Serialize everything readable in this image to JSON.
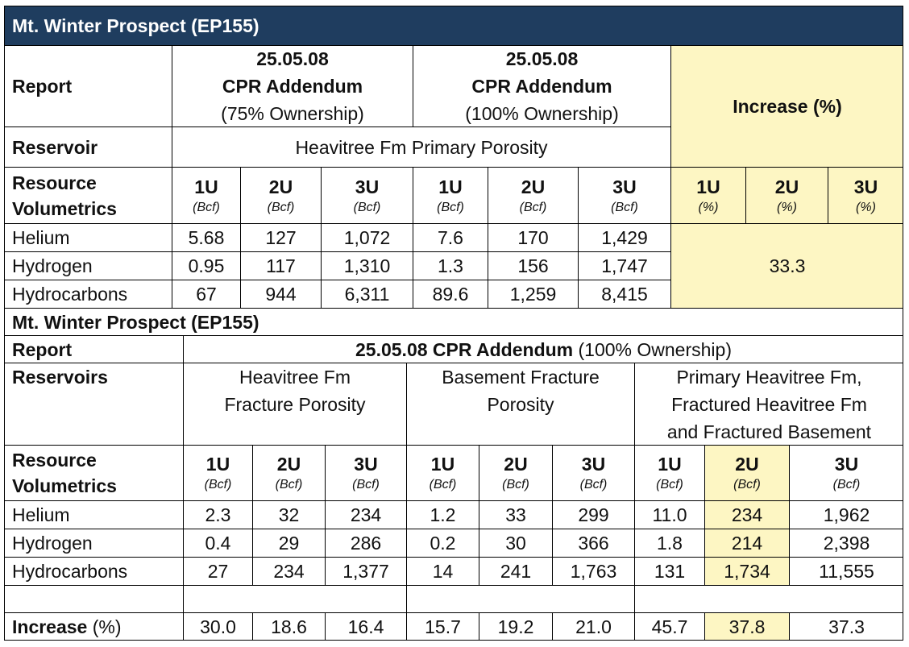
{
  "table1": {
    "title": "Mt. Winter Prospect (EP155)",
    "report_label": "Report",
    "reservoir_label": "Reservoir",
    "resource_label_1": "Resource",
    "resource_label_2": "Volumetrics",
    "group_a": {
      "date": "25.05.08",
      "name": "CPR Addendum",
      "ownership": "(75% Ownership)"
    },
    "group_b": {
      "date": "25.05.08",
      "name": "CPR Addendum",
      "ownership": "(100% Ownership)"
    },
    "reservoir_value": "Heavitree Fm  Primary Porosity",
    "increase_header": "Increase (%)",
    "columns": [
      "1U",
      "2U",
      "3U",
      "1U",
      "2U",
      "3U"
    ],
    "units": [
      "(Bcf)",
      "(Bcf)",
      "(Bcf)",
      "(Bcf)",
      "(Bcf)",
      "(Bcf)"
    ],
    "increase_columns": [
      "1U",
      "2U",
      "3U"
    ],
    "increase_units": [
      "(%)",
      "(%)",
      "(%)"
    ],
    "rows": [
      {
        "name": "Helium",
        "values": [
          "5.68",
          "127",
          "1,072",
          "7.6",
          "170",
          "1,429"
        ]
      },
      {
        "name": "Hydrogen",
        "values": [
          "0.95",
          "117",
          "1,310",
          "1.3",
          "156",
          "1,747"
        ]
      },
      {
        "name": "Hydrocarbons",
        "values": [
          "67",
          "944",
          "6,311",
          "89.6",
          "1,259",
          "8,415"
        ]
      }
    ],
    "increase_value": "33.3"
  },
  "table2": {
    "title": "Mt. Winter Prospect (EP155)",
    "report_label": "Report",
    "report_bold": "25.05.08 CPR Addendum",
    "report_normal": " (100% Ownership)",
    "reservoirs_label": "Reservoirs",
    "reservoir_a": [
      "Heavitree Fm",
      "Fracture Porosity"
    ],
    "reservoir_b": [
      "Basement Fracture",
      "Porosity"
    ],
    "reservoir_c": [
      "Primary Heavitree Fm,",
      "Fractured Heavitree Fm",
      "and Fractured Basement"
    ],
    "resource_label_1": "Resource",
    "resource_label_2": "Volumetrics",
    "columns": [
      "1U",
      "2U",
      "3U",
      "1U",
      "2U",
      "3U",
      "1U",
      "2U",
      "3U"
    ],
    "units": [
      "(Bcf)",
      "(Bcf)",
      "(Bcf)",
      "(Bcf)",
      "(Bcf)",
      "(Bcf)",
      "(Bcf)",
      "(Bcf)",
      "(Bcf)"
    ],
    "rows": [
      {
        "name": "Helium",
        "values": [
          "2.3",
          "32",
          "234",
          "1.2",
          "33",
          "299",
          "11.0",
          "234",
          "1,962"
        ]
      },
      {
        "name": "Hydrogen",
        "values": [
          "0.4",
          "29",
          "286",
          "0.2",
          "30",
          "366",
          "1.8",
          "214",
          "2,398"
        ]
      },
      {
        "name": "Hydrocarbons",
        "values": [
          "27",
          "234",
          "1,377",
          "14",
          "241",
          "1,763",
          "131",
          "1,734",
          "11,555"
        ]
      }
    ],
    "increase_label_bold": "Increase",
    "increase_label_normal": " (%)",
    "increase_values": [
      "30.0",
      "18.6",
      "16.4",
      "15.7",
      "19.2",
      "21.0",
      "45.7",
      "37.8",
      "37.3"
    ]
  },
  "colors": {
    "header_bg": "#1f3d5f",
    "highlight": "#fdf6c3"
  }
}
